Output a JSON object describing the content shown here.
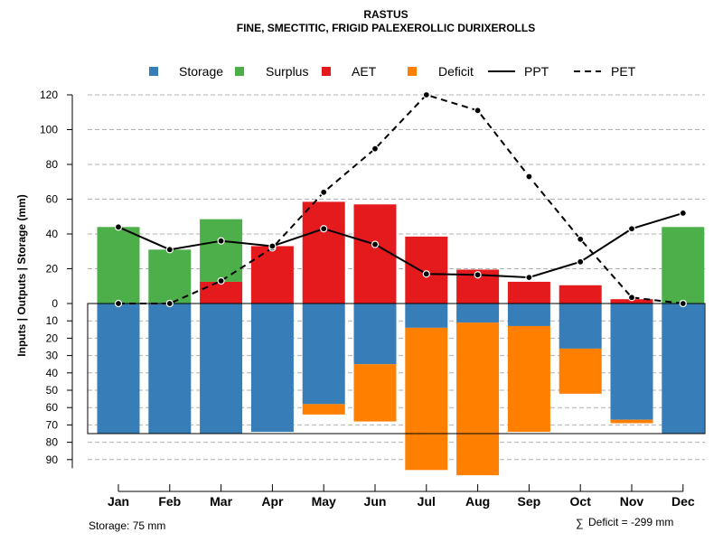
{
  "chart_data": {
    "type": "bar",
    "title": "RASTUS",
    "subtitle": "FINE, SMECTITIC, FRIGID PALEXEROLLIC DURIXEROLLS",
    "ylabel": "Inputs | Outputs | Storage    (mm)",
    "categories": [
      "Jan",
      "Feb",
      "Mar",
      "Apr",
      "May",
      "Jun",
      "Jul",
      "Aug",
      "Sep",
      "Oct",
      "Nov",
      "Dec"
    ],
    "upper_ticks": [
      "0",
      "20",
      "40",
      "60",
      "80",
      "100",
      "120"
    ],
    "lower_ticks": [
      "10",
      "20",
      "30",
      "40",
      "50",
      "60",
      "70",
      "80",
      "90"
    ],
    "ylim_upper": [
      0,
      120
    ],
    "ylim_lower": [
      0,
      100
    ],
    "storage_capacity": 75,
    "legend": [
      "Storage",
      "Surplus",
      "AET",
      "Deficit",
      "PPT",
      "PET"
    ],
    "series": [
      {
        "name": "Storage",
        "color": "#377EB8",
        "values": [
          75,
          75,
          75,
          74,
          58,
          35,
          14,
          11,
          13,
          26,
          67,
          75
        ]
      },
      {
        "name": "Surplus",
        "color": "#4DAF4A",
        "values": [
          44,
          31,
          36,
          0,
          0,
          0,
          0,
          0,
          0,
          0,
          0,
          44
        ]
      },
      {
        "name": "AET",
        "color": "#E41A1C",
        "values": [
          0,
          0,
          12.5,
          33,
          58.5,
          57,
          38.5,
          19.5,
          12.5,
          10.5,
          2.5,
          0
        ]
      },
      {
        "name": "Deficit",
        "color": "#FF7F00",
        "values": [
          0,
          0,
          0,
          0,
          6,
          33,
          82,
          88,
          61,
          26,
          2,
          0
        ]
      },
      {
        "name": "PPT",
        "color": "#000000",
        "values": [
          44,
          31,
          36,
          33,
          43,
          34,
          17,
          16.5,
          15,
          24,
          43,
          52
        ]
      },
      {
        "name": "PET",
        "color": "#000000",
        "values": [
          0,
          0,
          13,
          32,
          64,
          89,
          120,
          111,
          73,
          37,
          3.5,
          0
        ]
      }
    ],
    "footer_left": "Storage: 75 mm",
    "footer_right_symbol": "∑",
    "footer_right": "Deficit = -299 mm"
  }
}
